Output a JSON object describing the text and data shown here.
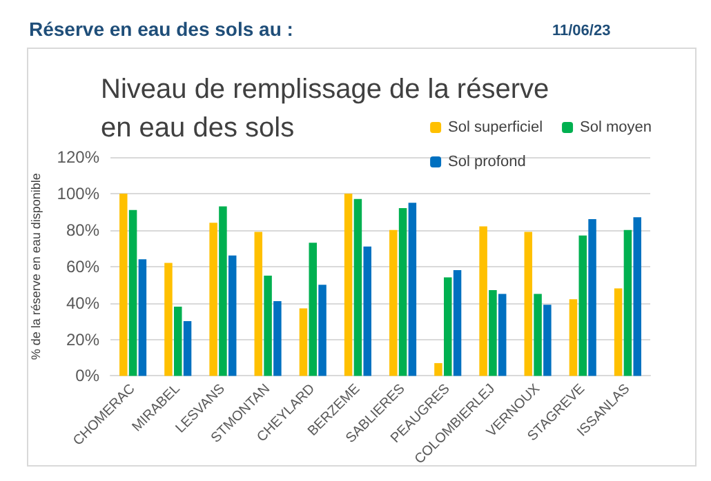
{
  "chart_data": {
    "type": "bar",
    "title": "Niveau de remplissage de la réserve en eau des sols",
    "ylabel": "% de la réserve en eau disponible",
    "annotations": [
      "Réserve en eau des sols au :",
      "11/06/23"
    ],
    "categories": [
      "CHOMERAC",
      "MIRABEL",
      "LESVANS",
      "STMONTAN",
      "CHEYLARD",
      "BERZEME",
      "SABLIERES",
      "PEAUGRES",
      "COLOMBIERLEJ",
      "VERNOUX",
      "STAGREVE",
      "ISSANLAS"
    ],
    "series": [
      {
        "name": "Sol superficiel",
        "color": "#ffc000",
        "values": [
          100,
          62,
          84,
          79,
          37,
          100,
          80,
          7,
          82,
          79,
          42,
          48
        ]
      },
      {
        "name": "Sol moyen",
        "color": "#00b050",
        "values": [
          91,
          38,
          93,
          55,
          73,
          97,
          92,
          54,
          47,
          45,
          77,
          80
        ]
      },
      {
        "name": "Sol profond",
        "color": "#0070c0",
        "values": [
          64,
          30,
          66,
          41,
          50,
          71,
          95,
          58,
          45,
          39,
          86,
          87
        ]
      }
    ],
    "ylim": [
      0,
      120
    ],
    "yticks": [
      {
        "value": 0,
        "label": "0%"
      },
      {
        "value": 20,
        "label": "20%"
      },
      {
        "value": 40,
        "label": "40%"
      },
      {
        "value": 60,
        "label": "60%"
      },
      {
        "value": 80,
        "label": "80%"
      },
      {
        "value": 100,
        "label": "100%"
      },
      {
        "value": 120,
        "label": "120%"
      }
    ],
    "grid": "y",
    "legend": "top right"
  }
}
